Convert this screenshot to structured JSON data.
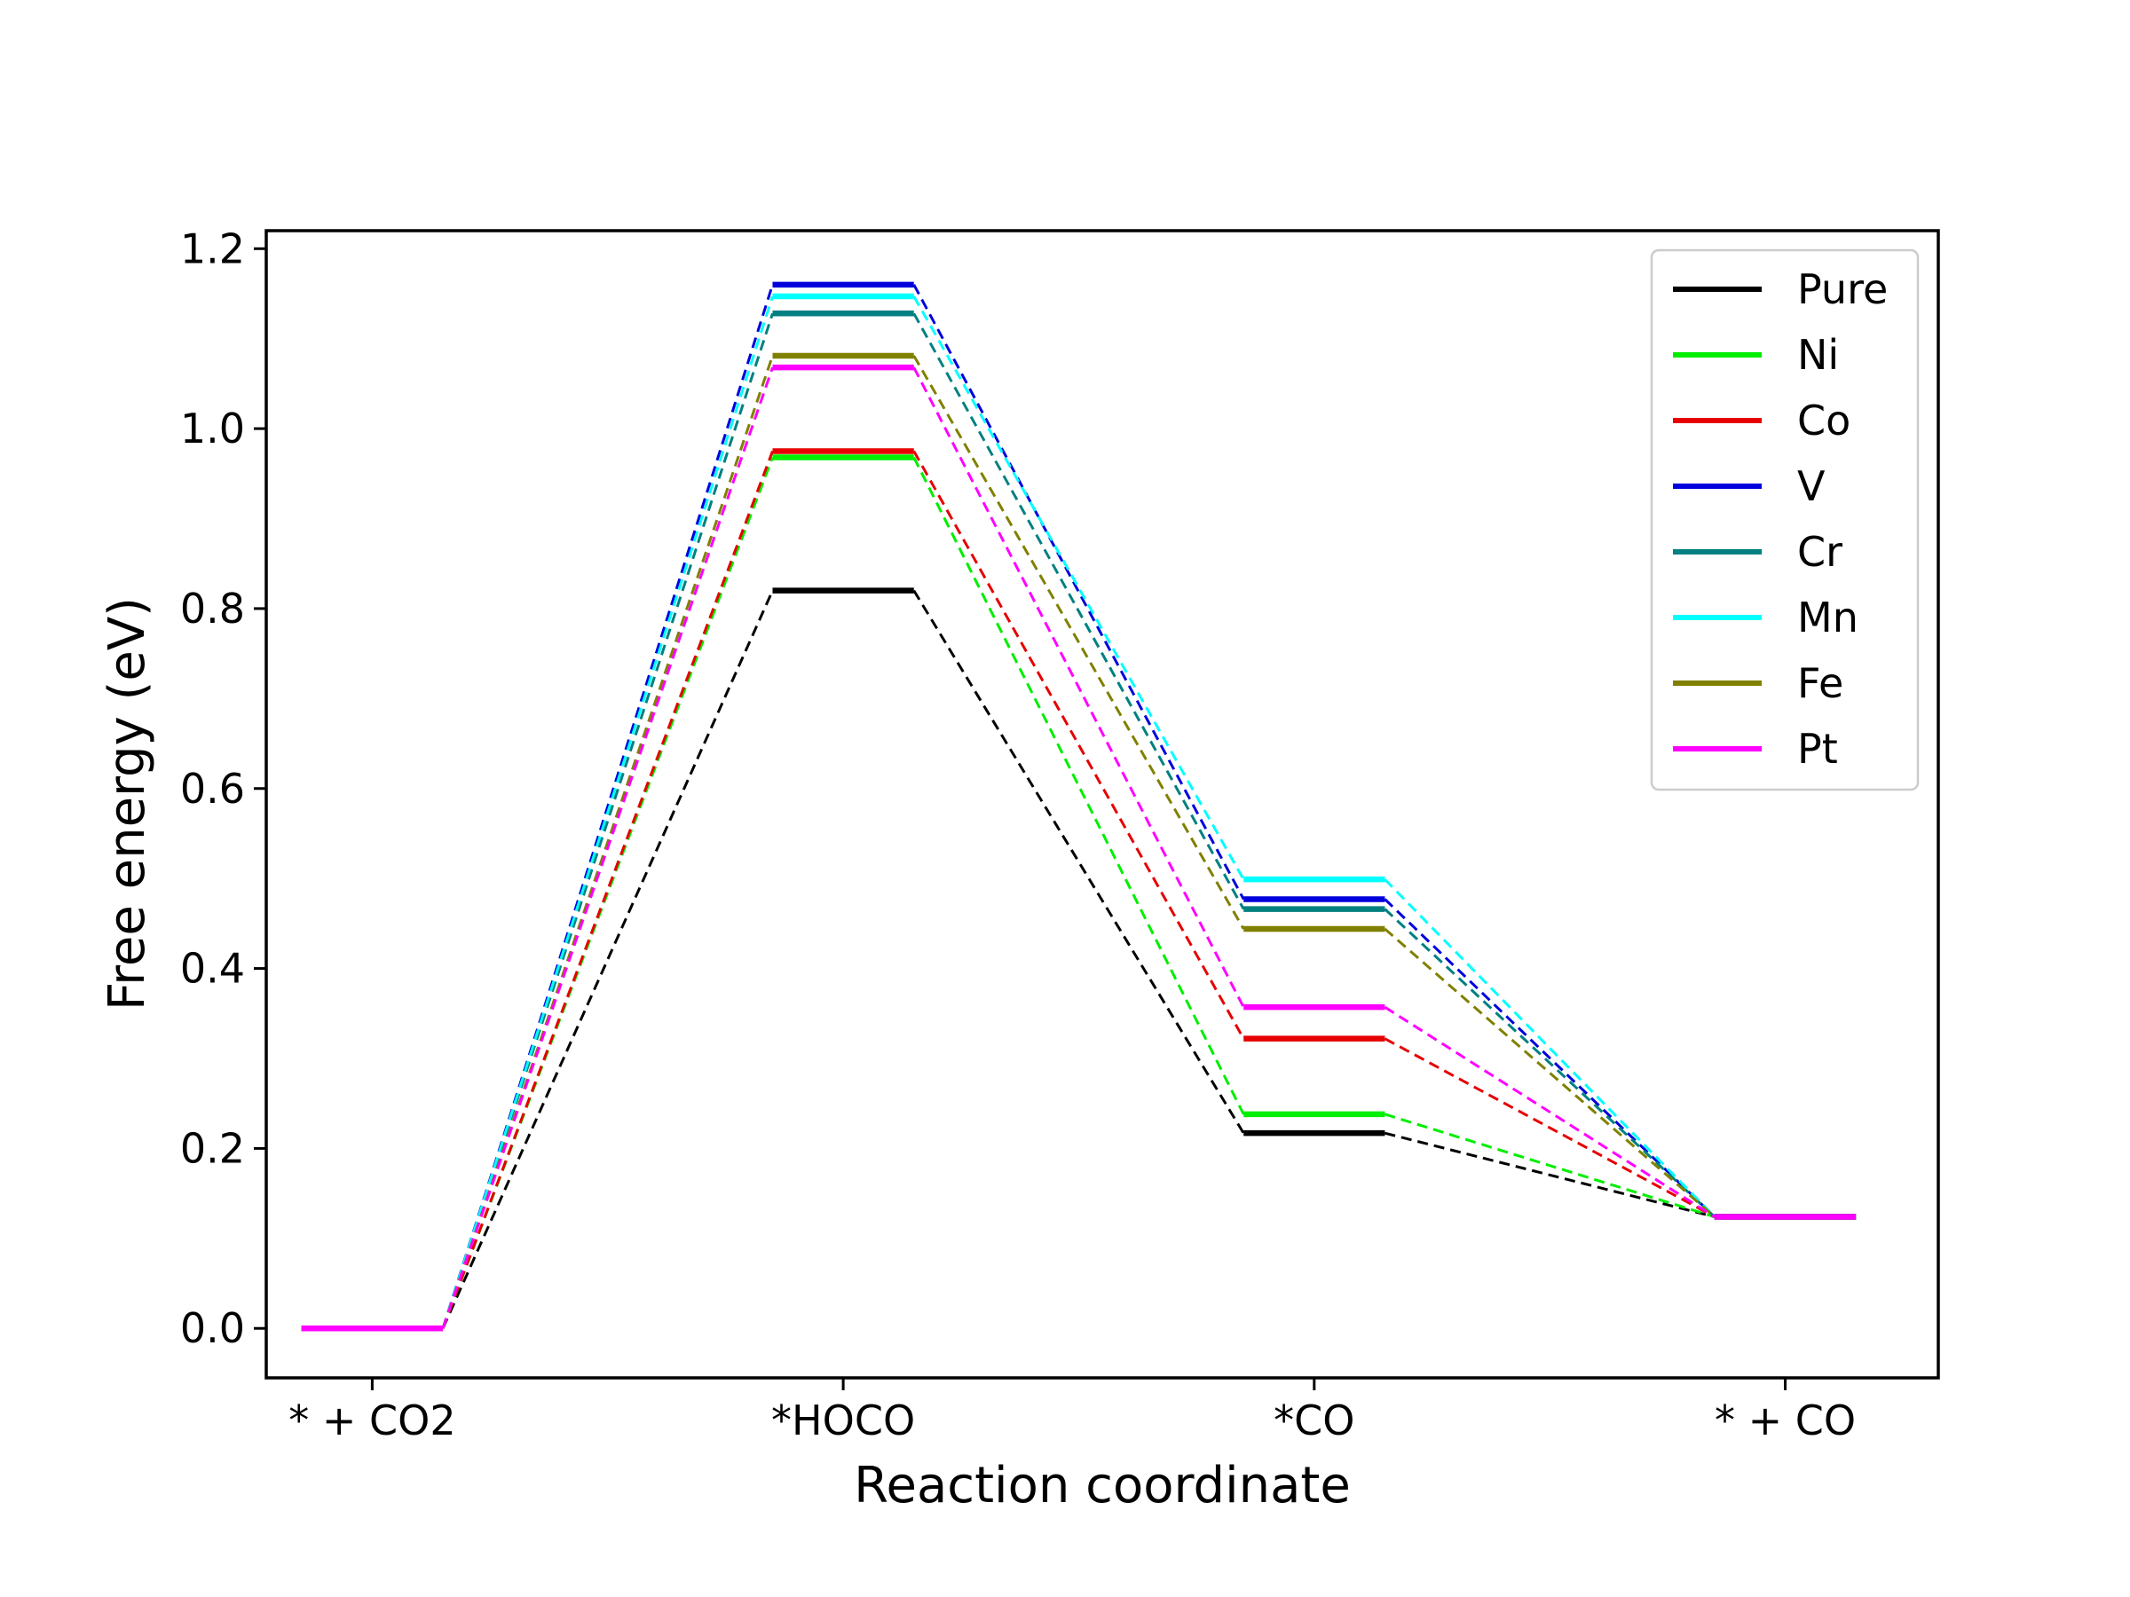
{
  "chart_data": {
    "type": "line",
    "title": "",
    "xlabel": "Reaction coordinate",
    "ylabel": "Free energy (eV)",
    "categories": [
      "* + CO2",
      "*HOCO",
      "*CO",
      "* + CO"
    ],
    "ylim": [
      -0.055,
      1.22
    ],
    "yticks": [
      "0.0",
      "0.2",
      "0.4",
      "0.6",
      "0.8",
      "1.0",
      "1.2"
    ],
    "grid": false,
    "legend_position": "top-right",
    "step_style": "solid levels joined by dashed connectors",
    "series": [
      {
        "name": "Pure",
        "color": "#000000",
        "values": [
          0.0,
          0.82,
          0.217,
          0.124
        ]
      },
      {
        "name": "Ni",
        "color": "#00ee00",
        "values": [
          0.0,
          0.968,
          0.238,
          0.124
        ]
      },
      {
        "name": "Co",
        "color": "#e60000",
        "values": [
          0.0,
          0.975,
          0.322,
          0.124
        ]
      },
      {
        "name": "V",
        "color": "#0000dd",
        "values": [
          0.0,
          1.16,
          0.477,
          0.124
        ]
      },
      {
        "name": "Cr",
        "color": "#008080",
        "values": [
          0.0,
          1.128,
          0.466,
          0.124
        ]
      },
      {
        "name": "Mn",
        "color": "#00ffff",
        "values": [
          0.0,
          1.147,
          0.499,
          0.124
        ]
      },
      {
        "name": "Fe",
        "color": "#808000",
        "values": [
          0.0,
          1.081,
          0.444,
          0.124
        ]
      },
      {
        "name": "Pt",
        "color": "#ff00ff",
        "values": [
          0.0,
          1.068,
          0.357,
          0.124
        ]
      }
    ]
  }
}
